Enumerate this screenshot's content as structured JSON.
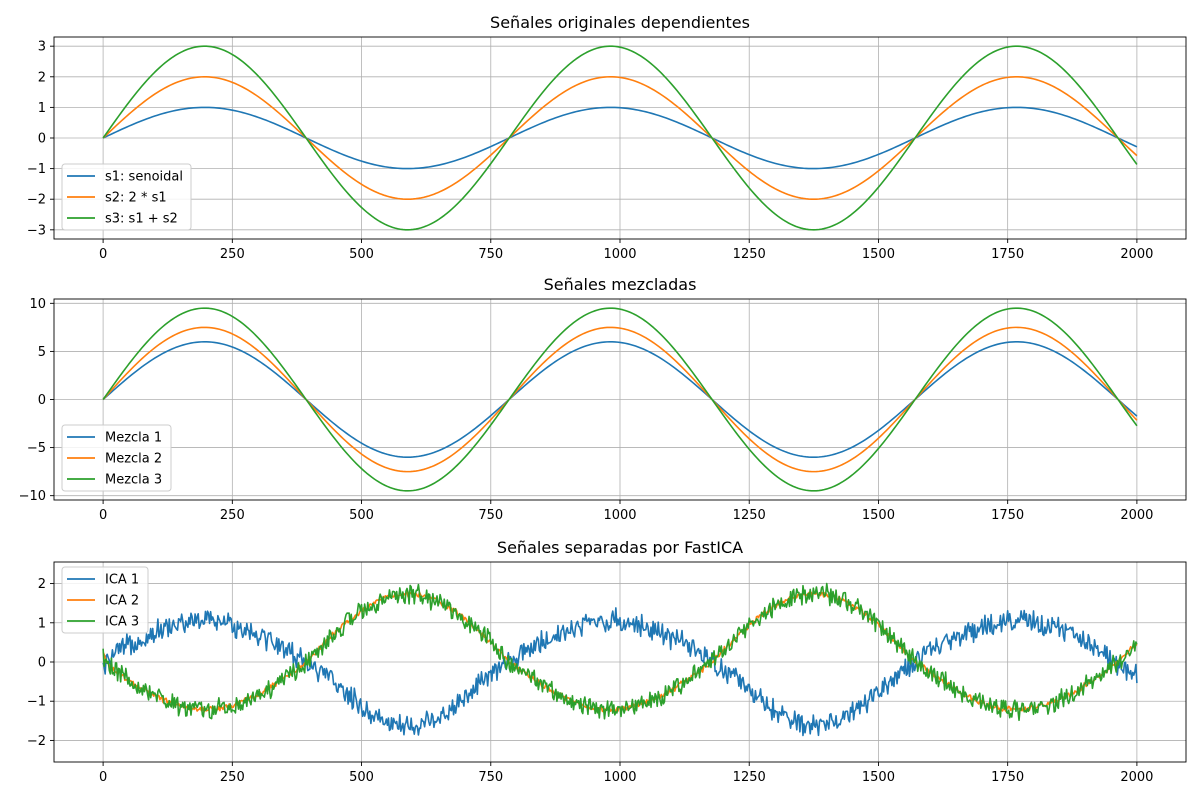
{
  "chart_data": [
    {
      "type": "line",
      "title": "Señales originales dependientes",
      "xlim": [
        -95,
        2095
      ],
      "ylim": [
        -3.3,
        3.3
      ],
      "xticks": [
        0,
        250,
        500,
        750,
        1000,
        1250,
        1500,
        1750,
        2000
      ],
      "yticks": [
        -3,
        -2,
        -1,
        0,
        1,
        2,
        3
      ],
      "ytick_labels": [
        "−3",
        "−2",
        "−1",
        "0",
        "1",
        "2",
        "3"
      ],
      "grid": true,
      "legend_position": "lower-left",
      "x_range": [
        0,
        2000
      ],
      "period": 785.4,
      "series": [
        {
          "name": "s1: senoidal",
          "color": "#1f77b4",
          "amplitude": 1,
          "noise": 0
        },
        {
          "name": "s2: 2 * s1",
          "color": "#ff7f0e",
          "amplitude": 2,
          "noise": 0
        },
        {
          "name": "s3: s1 + s2",
          "color": "#2ca02c",
          "amplitude": 3,
          "noise": 0
        }
      ]
    },
    {
      "type": "line",
      "title": "Señales mezcladas",
      "xlim": [
        -95,
        2095
      ],
      "ylim": [
        -10.45,
        10.45
      ],
      "xticks": [
        0,
        250,
        500,
        750,
        1000,
        1250,
        1500,
        1750,
        2000
      ],
      "yticks": [
        -10,
        -5,
        0,
        5,
        10
      ],
      "ytick_labels": [
        "−10",
        "−5",
        "0",
        "5",
        "10"
      ],
      "grid": true,
      "legend_position": "lower-left",
      "x_range": [
        0,
        2000
      ],
      "period": 785.4,
      "series": [
        {
          "name": "Mezcla 1",
          "color": "#1f77b4",
          "amplitude": 6,
          "noise": 0
        },
        {
          "name": "Mezcla 2",
          "color": "#ff7f0e",
          "amplitude": 7.5,
          "noise": 0
        },
        {
          "name": "Mezcla 3",
          "color": "#2ca02c",
          "amplitude": 9.5,
          "noise": 0
        }
      ]
    },
    {
      "type": "line",
      "title": "Señales separadas por FastICA",
      "xlim": [
        -95,
        2095
      ],
      "ylim": [
        -2.55,
        2.55
      ],
      "xticks": [
        0,
        250,
        500,
        750,
        1000,
        1250,
        1500,
        1750,
        2000
      ],
      "yticks": [
        -2,
        -1,
        0,
        1,
        2
      ],
      "ytick_labels": [
        "−2",
        "−1",
        "0",
        "1",
        "2"
      ],
      "grid": true,
      "legend_position": "upper-left",
      "x_range": [
        0,
        2000
      ],
      "period": 785.4,
      "series": [
        {
          "name": "ICA 1",
          "color": "#1f77b4",
          "amplitude": 1.7,
          "offset": -0.2,
          "phase_shift": -0.4,
          "noise": 0.25,
          "shape": "ica1"
        },
        {
          "name": "ICA 2",
          "color": "#ff7f0e",
          "amplitude": -1.5,
          "offset": 0.2,
          "phase_shift": -0.5,
          "noise": 0.06,
          "shape": "ica2"
        },
        {
          "name": "ICA 3",
          "color": "#2ca02c",
          "amplitude": -1.55,
          "offset": 0.2,
          "phase_shift": -0.5,
          "noise": 0.22,
          "shape": "ica3"
        }
      ]
    }
  ]
}
